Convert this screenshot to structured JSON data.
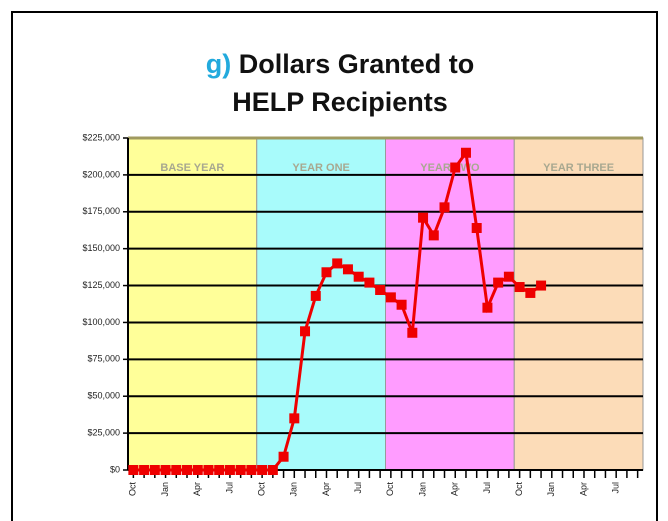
{
  "chart_data": {
    "type": "line",
    "panel_label": "g)",
    "title": [
      "Dollars Granted to",
      "HELP Recipients"
    ],
    "bands": [
      {
        "label": "BASE YEAR",
        "color": "#ffff99"
      },
      {
        "label": "YEAR ONE",
        "color": "#a8fbfb"
      },
      {
        "label": "YEAR TWO",
        "color": "#ff9cff"
      },
      {
        "label": "YEAR THREE",
        "color": "#fcdcb8"
      }
    ],
    "categories": [
      "Oct",
      null,
      null,
      "Jan",
      null,
      null,
      "Apr",
      null,
      null,
      "Jul",
      null,
      null,
      "Oct",
      null,
      null,
      "Jan",
      null,
      null,
      "Apr",
      null,
      null,
      "Jul",
      null,
      null,
      "Oct",
      null,
      null,
      "Jan",
      null,
      null,
      "Apr",
      null,
      null,
      "Jul",
      null,
      null,
      "Oct",
      null,
      null,
      "Jan",
      null,
      null,
      "Apr",
      null,
      null,
      "Jul",
      null,
      null
    ],
    "series": [
      {
        "name": "Dollars Granted",
        "color": "#ee0000",
        "values": [
          0,
          0,
          0,
          0,
          0,
          0,
          0,
          0,
          0,
          0,
          0,
          0,
          0,
          0,
          9000,
          35000,
          94000,
          118000,
          134000,
          140000,
          136000,
          131000,
          127000,
          122000,
          117000,
          112000,
          93000,
          171000,
          159000,
          178000,
          205000,
          215000,
          164000,
          110000,
          127000,
          131000,
          124000,
          120000,
          125000,
          null,
          null,
          null,
          null,
          null,
          null,
          null,
          null,
          null
        ]
      }
    ],
    "ylim": [
      0,
      225000
    ],
    "yticks": [
      {
        "value": 0,
        "label": "$0"
      },
      {
        "value": 25000,
        "label": "$25,000"
      },
      {
        "value": 50000,
        "label": "$50,000"
      },
      {
        "value": 75000,
        "label": "$75,000"
      },
      {
        "value": 100000,
        "label": "$100,000"
      },
      {
        "value": 125000,
        "label": "$125,000"
      },
      {
        "value": 150000,
        "label": "$150,000"
      },
      {
        "value": 175000,
        "label": "$175,000"
      },
      {
        "value": 200000,
        "label": "$200,000"
      },
      {
        "value": 225000,
        "label": "$225,000"
      }
    ],
    "grid": true
  }
}
